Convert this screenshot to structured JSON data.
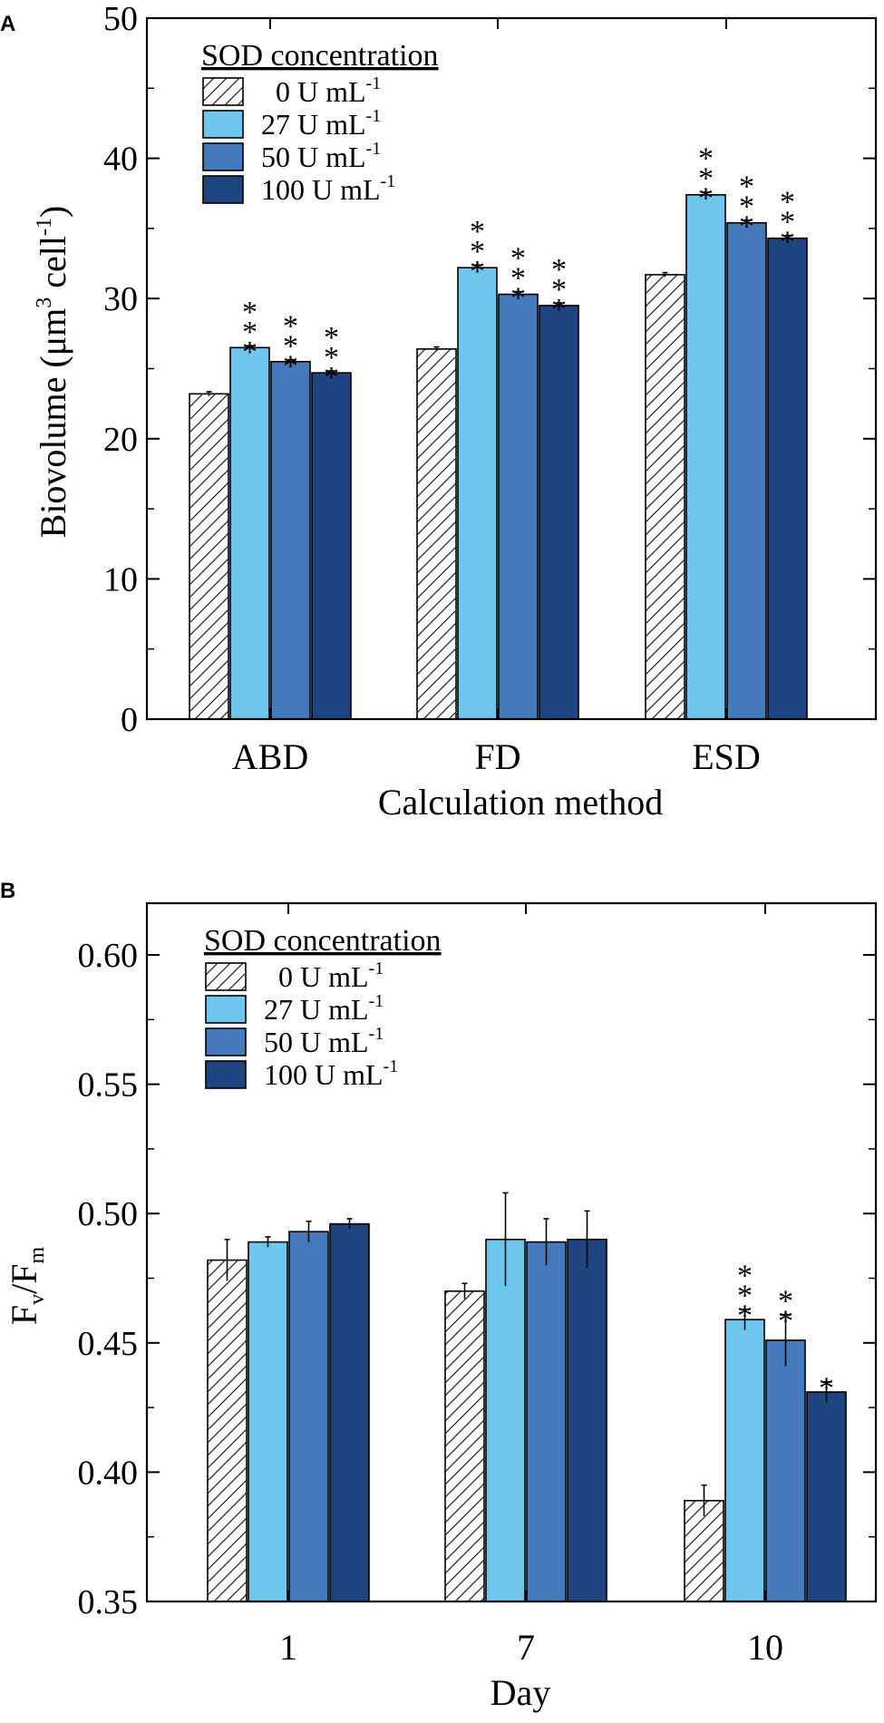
{
  "chart_data": [
    {
      "panel_label": "A",
      "type": "bar",
      "title": "",
      "xlabel": "Calculation method",
      "ylabel_main": "Biovolume (μm",
      "ylabel_sup1": "3",
      "ylabel_mid": " cell",
      "ylabel_sup2": "-1",
      "ylabel_end": ")",
      "ylim": [
        0,
        50
      ],
      "yticks": [
        "0",
        "10",
        "20",
        "30",
        "40",
        "50"
      ],
      "yticks_values": [
        0,
        10,
        20,
        30,
        40,
        50
      ],
      "categories": [
        "ABD",
        "FD",
        "ESD"
      ],
      "legend_title": "SOD concentration",
      "series": [
        {
          "name": "0 U mL-1",
          "legend_main": "0 U mL",
          "legend_sup": "-1",
          "fill": "hatch",
          "values": [
            23.2,
            26.4,
            31.7
          ],
          "errors": [
            0.15,
            0.15,
            0.15
          ],
          "sig": [
            "",
            "",
            ""
          ]
        },
        {
          "name": "27 U mL-1",
          "legend_main": "27 U mL",
          "legend_sup": "-1",
          "fill": "#6EC6EE",
          "values": [
            26.5,
            32.2,
            37.4
          ],
          "errors": [
            0.15,
            0.2,
            0.2
          ],
          "sig": [
            "***",
            "***",
            "***"
          ]
        },
        {
          "name": "50 U mL-1",
          "legend_main": "50 U mL",
          "legend_sup": "-1",
          "fill": "#4479BE",
          "values": [
            25.5,
            30.3,
            35.4
          ],
          "errors": [
            0.15,
            0.2,
            0.2
          ],
          "sig": [
            "***",
            "***",
            "***"
          ]
        },
        {
          "name": "100 U mL-1",
          "legend_main": "100 U mL",
          "legend_sup": "-1",
          "fill": "#1E4580",
          "values": [
            24.7,
            29.5,
            34.3
          ],
          "errors": [
            0.15,
            0.2,
            0.2
          ],
          "sig": [
            "***",
            "***",
            "***"
          ]
        }
      ]
    },
    {
      "panel_label": "B",
      "type": "bar",
      "title": "",
      "xlabel": "Day",
      "ylabel_main": "F",
      "ylabel_sub1": "v",
      "ylabel_mid": "/F",
      "ylabel_sub2": "m",
      "ylim": [
        0.35,
        0.62
      ],
      "yticks": [
        "0.35",
        "0.40",
        "0.45",
        "0.50",
        "0.55",
        "0.60"
      ],
      "yticks_values": [
        0.35,
        0.4,
        0.45,
        0.5,
        0.55,
        0.6
      ],
      "categories": [
        "1",
        "7",
        "10"
      ],
      "legend_title": "SOD concentration",
      "series": [
        {
          "name": "0 U mL-1",
          "legend_main": "0 U mL",
          "legend_sup": "-1",
          "fill": "hatch",
          "values": [
            0.482,
            0.47,
            0.389
          ],
          "errors": [
            0.008,
            0.003,
            0.006
          ],
          "sig": [
            "",
            "",
            ""
          ]
        },
        {
          "name": "27 U mL-1",
          "legend_main": "27 U mL",
          "legend_sup": "-1",
          "fill": "#6EC6EE",
          "values": [
            0.489,
            0.49,
            0.459
          ],
          "errors": [
            0.002,
            0.018,
            0.004
          ],
          "sig": [
            "",
            "",
            "***"
          ]
        },
        {
          "name": "50 U mL-1",
          "legend_main": "50 U mL",
          "legend_sup": "-1",
          "fill": "#4479BE",
          "values": [
            0.493,
            0.489,
            0.451
          ],
          "errors": [
            0.004,
            0.009,
            0.01
          ],
          "sig": [
            "",
            "",
            "**"
          ]
        },
        {
          "name": "100 U mL-1",
          "legend_main": "100 U mL",
          "legend_sup": "-1",
          "fill": "#1E4580",
          "values": [
            0.496,
            0.49,
            0.431
          ],
          "errors": [
            0.002,
            0.011,
            0.004
          ],
          "sig": [
            "",
            "",
            "*"
          ]
        }
      ]
    }
  ]
}
